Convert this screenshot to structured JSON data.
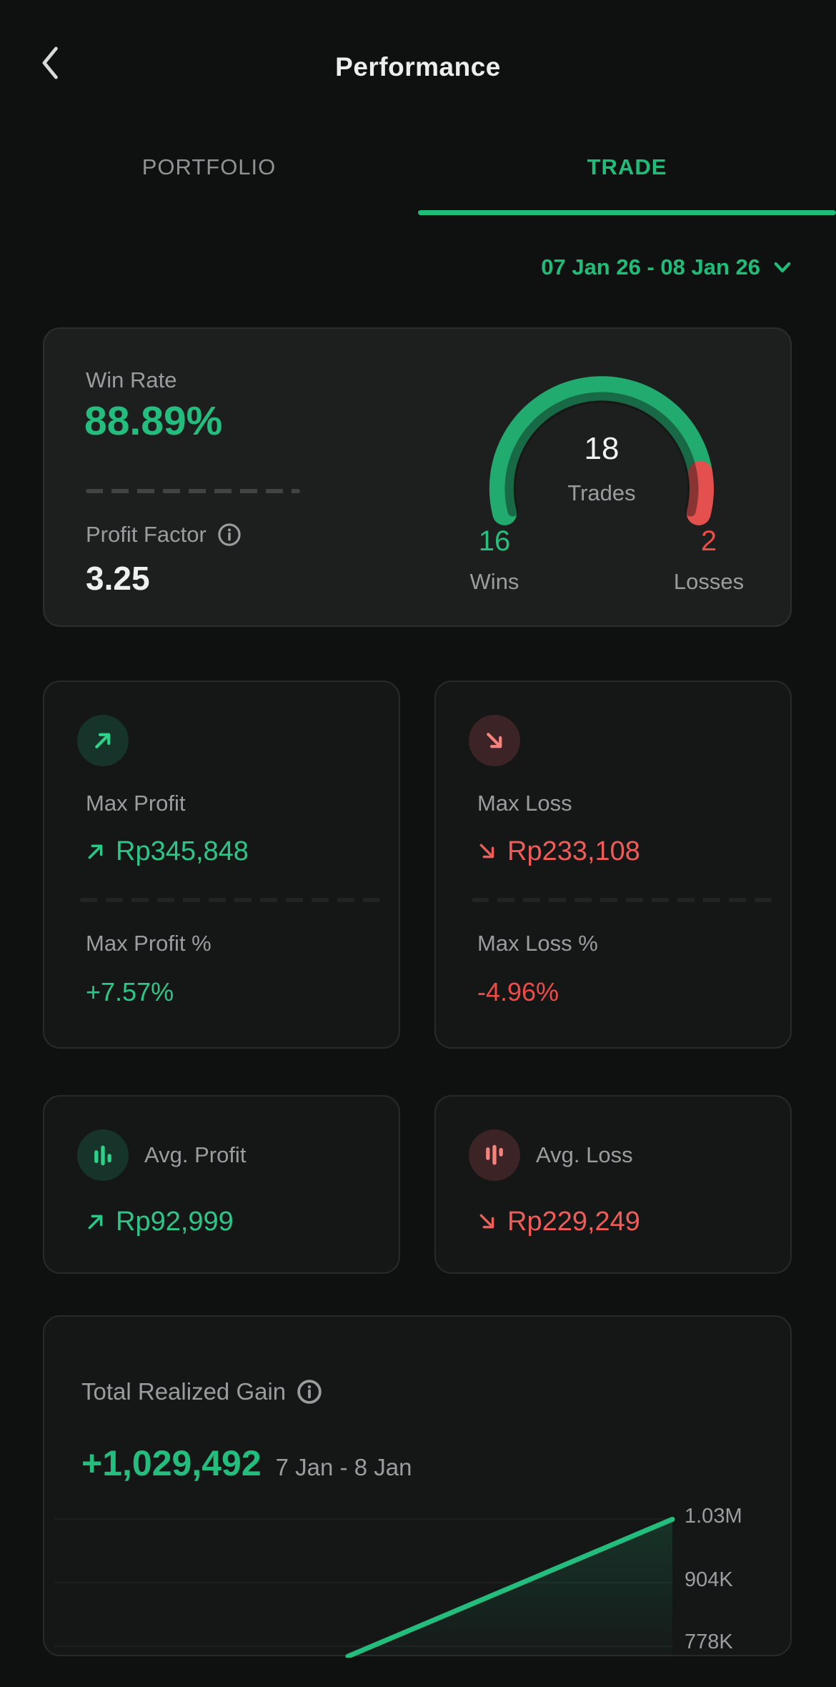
{
  "header": {
    "title": "Performance"
  },
  "tabs": {
    "portfolio": "PORTFOLIO",
    "trade": "TRADE"
  },
  "date_filter": {
    "label": "07 Jan 26 - 08 Jan 26"
  },
  "win_rate_card": {
    "label": "Win Rate",
    "value": "88.89%",
    "profit_factor_label": "Profit Factor",
    "profit_factor_value": "3.25",
    "trades_value": "18",
    "trades_label": "Trades",
    "wins_value": "16",
    "wins_label": "Wins",
    "losses_value": "2",
    "losses_label": "Losses"
  },
  "max_profit_card": {
    "title": "Max Profit",
    "value": "Rp345,848",
    "percent_label": "Max Profit %",
    "percent_value": "+7.57%"
  },
  "max_loss_card": {
    "title": "Max Loss",
    "value": "Rp233,108",
    "percent_label": "Max Loss %",
    "percent_value": "-4.96%"
  },
  "avg_profit_card": {
    "title": "Avg. Profit",
    "value": "Rp92,999"
  },
  "avg_loss_card": {
    "title": "Avg. Loss",
    "value": "Rp229,249"
  },
  "total_gain_card": {
    "title": "Total Realized Gain",
    "value": "+1,029,492",
    "period": "7 Jan - 8 Jan"
  },
  "colors": {
    "accent_green": "#1fbd7a",
    "value_green": "#2cc689",
    "gauge_green": "#22ab6f",
    "gauge_red": "#e4504e",
    "value_red": "#f15b58",
    "percent_red": "#f04b46",
    "label_gray": "#9a9d9e",
    "card_bg": "#151717",
    "highlight_card_bg": "#1d1f1e"
  },
  "chart_data": [
    {
      "type": "gauge",
      "title": "Trades win/loss gauge",
      "total": 18,
      "center_label": "Trades",
      "arc_span_degrees": 208,
      "segments": [
        {
          "name": "Wins",
          "value": 16,
          "color": "#22ab6f"
        },
        {
          "name": "Losses",
          "value": 2,
          "color": "#e4504e"
        }
      ]
    },
    {
      "type": "area",
      "title": "Total Realized Gain 7 Jan - 8 Jan",
      "x": [
        "7 Jan",
        "8 Jan"
      ],
      "values": [
        758000,
        1029492
      ],
      "y_ticks": [
        "1.03M",
        "904K",
        "778K"
      ],
      "y_tick_values": [
        1030000,
        904000,
        778000
      ],
      "line_color": "#23bd7e",
      "legend": "none",
      "grid": "faint-horizontal"
    }
  ]
}
